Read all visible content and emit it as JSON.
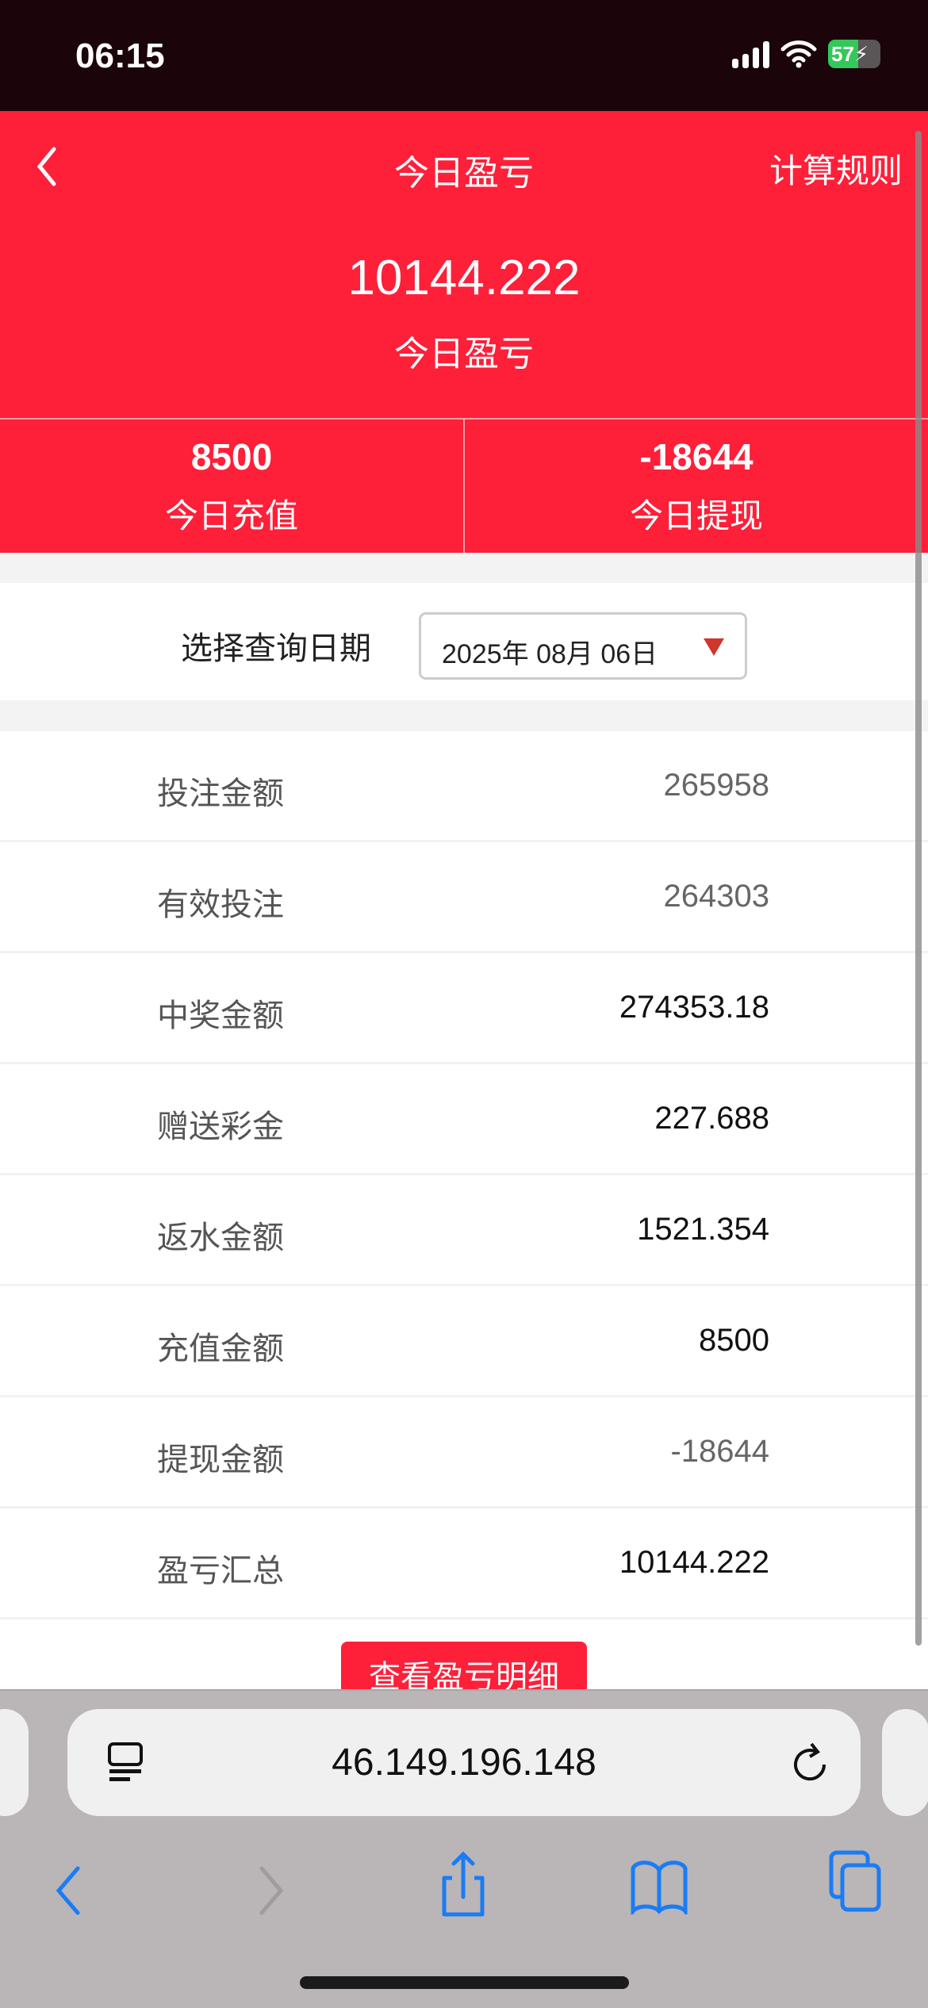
{
  "status_bar": {
    "time": "06:15",
    "battery": "57",
    "battery_level": 0.57
  },
  "header": {
    "title": "今日盈亏",
    "rules_label": "计算规则",
    "profit_value": "10144.222",
    "profit_label": "今日盈亏",
    "stats": [
      {
        "value": "8500",
        "label": "今日充值"
      },
      {
        "value": "-18644",
        "label": "今日提现"
      }
    ]
  },
  "date_filter": {
    "label": "选择查询日期",
    "value": "2025年 08月 06日"
  },
  "rows": [
    {
      "label": "投注金额",
      "value": "265958",
      "muted": true
    },
    {
      "label": "有效投注",
      "value": "264303",
      "muted": true
    },
    {
      "label": "中奖金额",
      "value": "274353.18",
      "muted": false
    },
    {
      "label": "赠送彩金",
      "value": "227.688",
      "muted": false
    },
    {
      "label": "返水金额",
      "value": "1521.354",
      "muted": false
    },
    {
      "label": "充值金额",
      "value": "8500",
      "muted": false
    },
    {
      "label": "提现金额",
      "value": "-18644",
      "muted": true
    },
    {
      "label": "盈亏汇总",
      "value": "10144.222",
      "muted": false
    }
  ],
  "detail_button": "查看盈亏明细",
  "browser": {
    "url": "46.149.196.148"
  },
  "colors": {
    "brand_red": "#fe1f39",
    "safari_blue": "#1a7cf5"
  }
}
